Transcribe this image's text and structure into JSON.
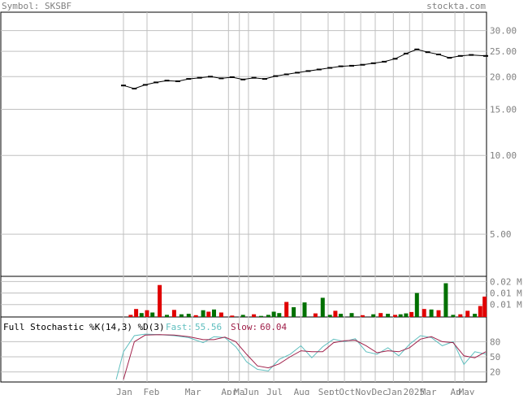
{
  "header": {
    "symbol_text": "Symbol: SKSBF",
    "site_text": "stockta.com"
  },
  "stochastic": {
    "title": "Full Stochastic %K(14,3) %D(3)",
    "fast_label": "Fast:",
    "fast_value": "55.56",
    "slow_label": "Slow:",
    "slow_value": "60.04"
  },
  "colors": {
    "text": "#808080",
    "grid": "#c0c0c0",
    "frame": "#000000",
    "vol_up": "#007000",
    "vol_down": "#e00000",
    "fast_line": "#5fbfbf",
    "slow_line": "#a0204a",
    "price_line": "#000000"
  },
  "chart_data": [
    {
      "type": "line",
      "panel": "price",
      "scale": "log",
      "ylim": [
        3.5,
        35
      ],
      "y_ticks": [
        {
          "value": 30,
          "label": "30.00"
        },
        {
          "value": 25,
          "label": "25.00"
        },
        {
          "value": 20,
          "label": "20.00"
        },
        {
          "value": 15,
          "label": "15.00"
        },
        {
          "value": 10,
          "label": "10.00"
        },
        {
          "value": 5,
          "label": "5.00"
        }
      ],
      "x_labels": [
        "Jan",
        "Feb",
        "Mar",
        "Apr",
        "Ma",
        "Jun",
        "Jul",
        "Aug",
        "Sept",
        "Oct",
        "Nov",
        "Dec",
        "Jan",
        "2025",
        "Mar",
        "Ap",
        "May"
      ],
      "x": [
        0,
        0.03,
        0.06,
        0.09,
        0.12,
        0.15,
        0.18,
        0.21,
        0.24,
        0.27,
        0.3,
        0.33,
        0.36,
        0.39,
        0.42,
        0.45,
        0.48,
        0.51,
        0.54,
        0.57,
        0.6,
        0.63,
        0.66,
        0.69,
        0.72,
        0.75,
        0.78,
        0.81,
        0.84,
        0.87,
        0.9,
        0.93,
        0.96,
        1.0
      ],
      "values": [
        18.5,
        18.0,
        18.6,
        19.0,
        19.3,
        19.2,
        19.6,
        19.8,
        20.0,
        19.7,
        19.9,
        19.5,
        19.8,
        19.6,
        20.1,
        20.4,
        20.7,
        21.0,
        21.3,
        21.6,
        21.9,
        22.0,
        22.2,
        22.5,
        22.8,
        23.4,
        24.5,
        25.4,
        24.8,
        24.3,
        23.6,
        24.0,
        24.2,
        24.0
      ]
    },
    {
      "type": "bar",
      "panel": "volume",
      "ylim": [
        0,
        0.022
      ],
      "y_ticks": [
        {
          "value": 0.02,
          "label": "0.02 M"
        },
        {
          "value": 0.0135,
          "label": "0.01 M"
        },
        {
          "value": 0.007,
          "label": "0.01 M"
        }
      ],
      "x": [
        0.02,
        0.035,
        0.05,
        0.065,
        0.08,
        0.1,
        0.12,
        0.14,
        0.16,
        0.18,
        0.2,
        0.22,
        0.235,
        0.25,
        0.27,
        0.3,
        0.33,
        0.36,
        0.38,
        0.4,
        0.415,
        0.43,
        0.45,
        0.47,
        0.5,
        0.53,
        0.55,
        0.57,
        0.585,
        0.6,
        0.63,
        0.66,
        0.69,
        0.71,
        0.73,
        0.75,
        0.765,
        0.78,
        0.795,
        0.81,
        0.83,
        0.85,
        0.87,
        0.89,
        0.91,
        0.93,
        0.95,
        0.97,
        0.985,
        0.997
      ],
      "values": [
        0.0012,
        0.0045,
        0.0022,
        0.0038,
        0.0025,
        0.018,
        0.0012,
        0.004,
        0.0015,
        0.0018,
        0.001,
        0.0038,
        0.003,
        0.0042,
        0.0025,
        0.0008,
        0.0012,
        0.0015,
        0.0006,
        0.0012,
        0.003,
        0.0022,
        0.0085,
        0.0055,
        0.0082,
        0.002,
        0.0108,
        0.0012,
        0.0035,
        0.0018,
        0.0022,
        0.001,
        0.0015,
        0.0022,
        0.0018,
        0.0012,
        0.0015,
        0.002,
        0.0028,
        0.0135,
        0.0045,
        0.0042,
        0.0038,
        0.019,
        0.0012,
        0.0015,
        0.0035,
        0.0018,
        0.0062,
        0.0115
      ],
      "colors": [
        "down",
        "down",
        "up",
        "down",
        "up",
        "down",
        "up",
        "down",
        "up",
        "up",
        "down",
        "up",
        "down",
        "up",
        "down",
        "down",
        "up",
        "down",
        "up",
        "up",
        "up",
        "up",
        "down",
        "up",
        "up",
        "down",
        "up",
        "up",
        "down",
        "up",
        "up",
        "down",
        "up",
        "down",
        "up",
        "down",
        "up",
        "up",
        "down",
        "up",
        "down",
        "up",
        "down",
        "up",
        "up",
        "down",
        "down",
        "up",
        "down",
        "down"
      ]
    },
    {
      "type": "line",
      "panel": "stochastic",
      "ylim": [
        0,
        100
      ],
      "y_ticks": [
        {
          "value": 80,
          "label": "80"
        },
        {
          "value": 50,
          "label": "50"
        },
        {
          "value": 20,
          "label": "20"
        }
      ],
      "series": [
        {
          "name": "Fast",
          "x": [
            -0.02,
            0.0,
            0.03,
            0.06,
            0.1,
            0.14,
            0.18,
            0.22,
            0.25,
            0.28,
            0.31,
            0.34,
            0.37,
            0.4,
            0.43,
            0.46,
            0.49,
            0.52,
            0.55,
            0.58,
            0.61,
            0.64,
            0.67,
            0.7,
            0.73,
            0.76,
            0.79,
            0.82,
            0.85,
            0.88,
            0.91,
            0.94,
            0.97,
            1.0
          ],
          "values": [
            5,
            60,
            92,
            95,
            94,
            92,
            88,
            78,
            90,
            88,
            70,
            40,
            25,
            22,
            45,
            55,
            72,
            48,
            70,
            85,
            80,
            86,
            60,
            55,
            68,
            52,
            75,
            92,
            88,
            72,
            80,
            35,
            60,
            55.56
          ]
        },
        {
          "name": "Slow",
          "x": [
            0.0,
            0.03,
            0.06,
            0.1,
            0.14,
            0.18,
            0.22,
            0.25,
            0.28,
            0.31,
            0.34,
            0.37,
            0.4,
            0.43,
            0.46,
            0.49,
            0.52,
            0.55,
            0.58,
            0.61,
            0.64,
            0.67,
            0.7,
            0.73,
            0.76,
            0.79,
            0.82,
            0.85,
            0.88,
            0.91,
            0.94,
            0.97,
            1.0
          ],
          "values": [
            5,
            80,
            93,
            94,
            93,
            90,
            84,
            84,
            89,
            80,
            55,
            32,
            28,
            36,
            50,
            62,
            60,
            60,
            78,
            82,
            83,
            72,
            58,
            62,
            60,
            68,
            85,
            90,
            80,
            78,
            52,
            48,
            60.04
          ]
        }
      ]
    }
  ]
}
